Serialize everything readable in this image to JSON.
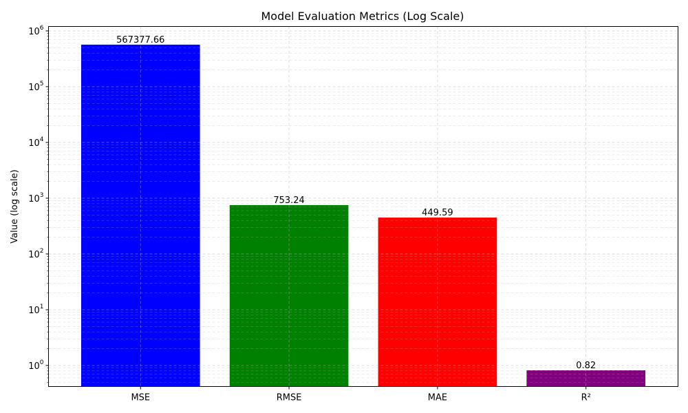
{
  "chart_data": {
    "type": "bar",
    "title": "Model Evaluation Metrics (Log Scale)",
    "xlabel": "",
    "ylabel": "Value (log scale)",
    "scale": "log",
    "categories": [
      "MSE",
      "RMSE",
      "MAE",
      "R²"
    ],
    "values": [
      567377.66,
      753.24,
      449.59,
      0.82
    ],
    "data_labels": [
      "567377.66",
      "753.24",
      "449.59",
      "0.82"
    ],
    "colors": [
      "#0000ff",
      "#008000",
      "#ff0000",
      "#800080"
    ],
    "ylim": [
      0.42,
      1200000
    ],
    "yticks": [
      {
        "value": 1,
        "base": "10",
        "exp": "0"
      },
      {
        "value": 10,
        "base": "10",
        "exp": "1"
      },
      {
        "value": 100,
        "base": "10",
        "exp": "2"
      },
      {
        "value": 1000,
        "base": "10",
        "exp": "3"
      },
      {
        "value": 10000,
        "base": "10",
        "exp": "4"
      },
      {
        "value": 100000,
        "base": "10",
        "exp": "5"
      },
      {
        "value": 1000000,
        "base": "10",
        "exp": "6"
      }
    ],
    "grid": true,
    "grid_style": "dashed"
  }
}
